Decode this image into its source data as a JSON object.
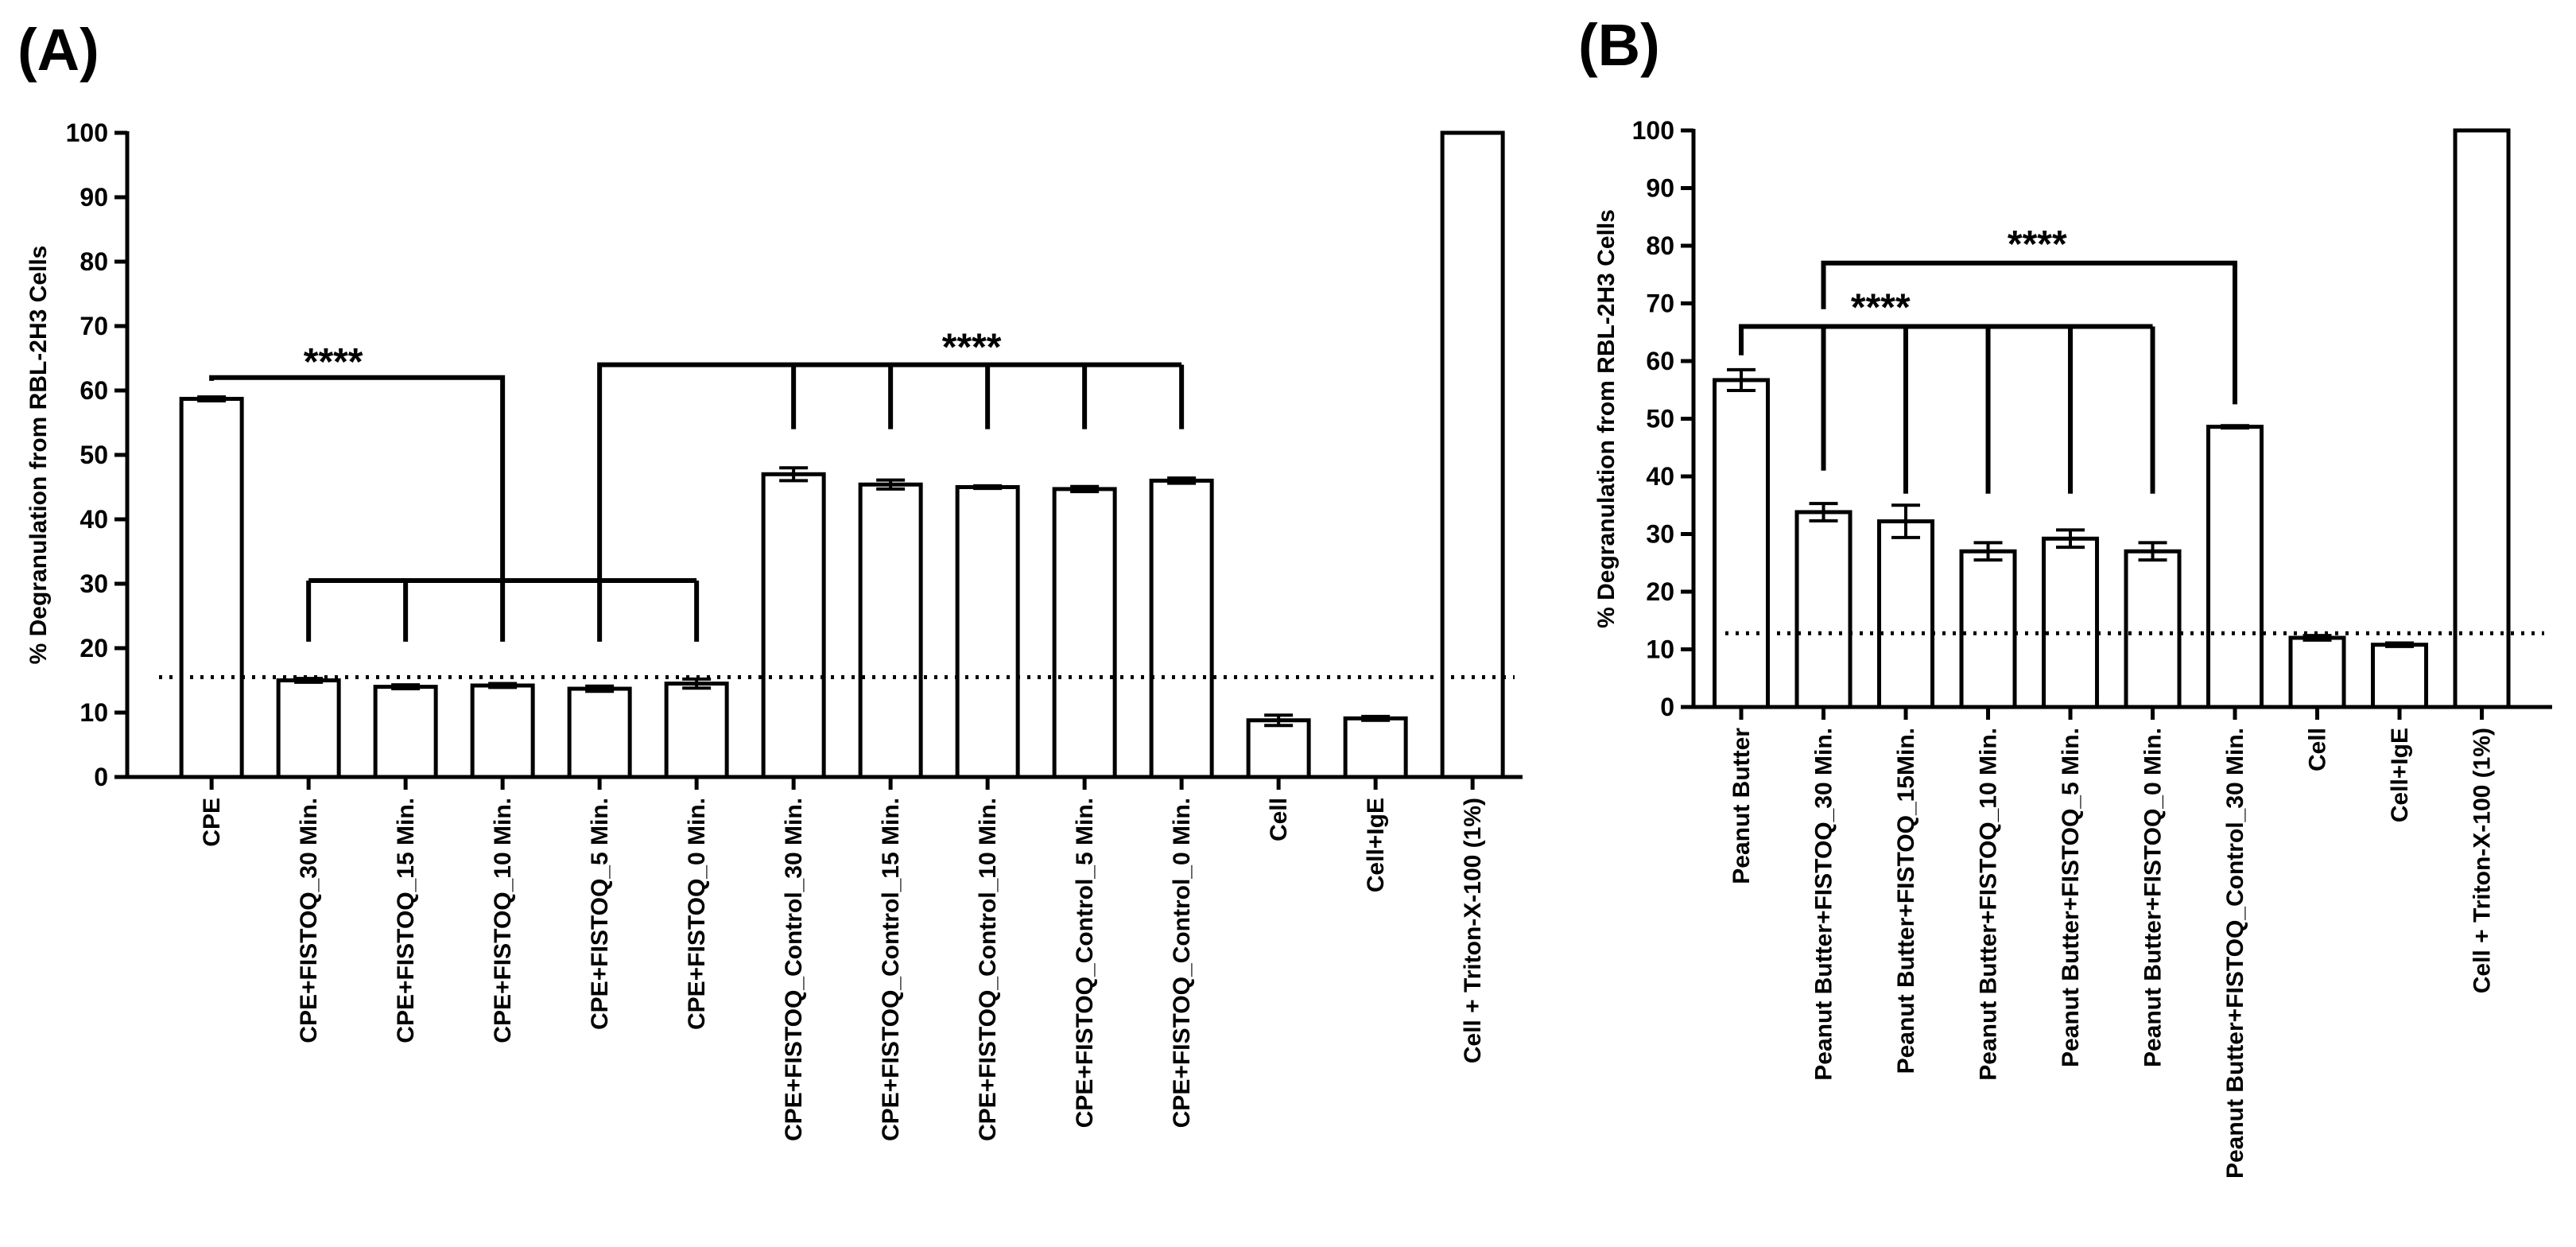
{
  "chart_data": [
    {
      "panel_label": "(A)",
      "type": "bar",
      "ylabel": "% Degranulation from RBL-2H3 Cells",
      "xlabel": "",
      "ylim": [
        0,
        100
      ],
      "yticks": [
        0,
        10,
        20,
        30,
        40,
        50,
        60,
        70,
        80,
        90,
        100
      ],
      "reference_line": 15.5,
      "categories": [
        "CPE",
        "CPE+FISTOQ_30 Min.",
        "CPE+FISTOQ_15 Min.",
        "CPE+FISTOQ_10 Min.",
        "CPE+FISTOQ_5 Min.",
        "CPE+FISTOQ_0 Min.",
        "CPE+FISTOQ_Control_30 Min.",
        "CPE+FISTOQ_Control_15 Min.",
        "CPE+FISTOQ_Control_10 Min.",
        "CPE+FISTOQ_Control_5 Min.",
        "CPE+FISTOQ_Control_0 Min.",
        "Cell",
        "Cell+IgE",
        "Cell + Triton-X-100 (1%)"
      ],
      "values": [
        58.7,
        15.0,
        14.0,
        14.2,
        13.7,
        14.5,
        47.0,
        45.4,
        45.0,
        44.7,
        46.0,
        8.8,
        9.1,
        100
      ],
      "errors": [
        0.3,
        0.3,
        0.3,
        0.3,
        0.4,
        0.7,
        1.0,
        0.7,
        0.2,
        0.4,
        0.4,
        0.8,
        0.3,
        0
      ],
      "significance": [
        {
          "label": "****",
          "from": 0,
          "to": [
            1,
            2,
            3,
            4,
            5
          ]
        },
        {
          "label": "****",
          "from": 4,
          "to": [
            6,
            7,
            8,
            9,
            10
          ]
        }
      ]
    },
    {
      "panel_label": "(B)",
      "type": "bar",
      "ylabel": "% Degranulation from RBL-2H3 Cells",
      "xlabel": "",
      "ylim": [
        0,
        100
      ],
      "yticks": [
        0,
        10,
        20,
        30,
        40,
        50,
        60,
        70,
        80,
        90,
        100
      ],
      "reference_line": 12.8,
      "categories": [
        "Peanut Butter",
        "Peanut Butter+FISTOQ_30 Min.",
        "Peanut Butter+FISTOQ_15Min.",
        "Peanut Butter+FISTOQ_10 Min.",
        "Peanut Butter+FISTOQ_5 Min.",
        "Peanut Butter+FISTOQ_0 Min.",
        "Peanut Butter+FISTOQ_Control_30 Min.",
        "Cell",
        "Cell+IgE",
        "Cell + Triton-X-100 (1%)"
      ],
      "values": [
        56.7,
        33.8,
        32.2,
        27.0,
        29.2,
        27.0,
        48.6,
        12.0,
        10.8,
        100
      ],
      "errors": [
        1.8,
        1.5,
        2.8,
        1.5,
        1.5,
        1.5,
        0.2,
        0.4,
        0.3,
        0
      ],
      "significance": [
        {
          "label": "****",
          "from": 1,
          "to": [
            6
          ]
        },
        {
          "label": "****",
          "from": 0,
          "to": [
            1,
            2,
            3,
            4,
            5
          ]
        }
      ]
    }
  ]
}
